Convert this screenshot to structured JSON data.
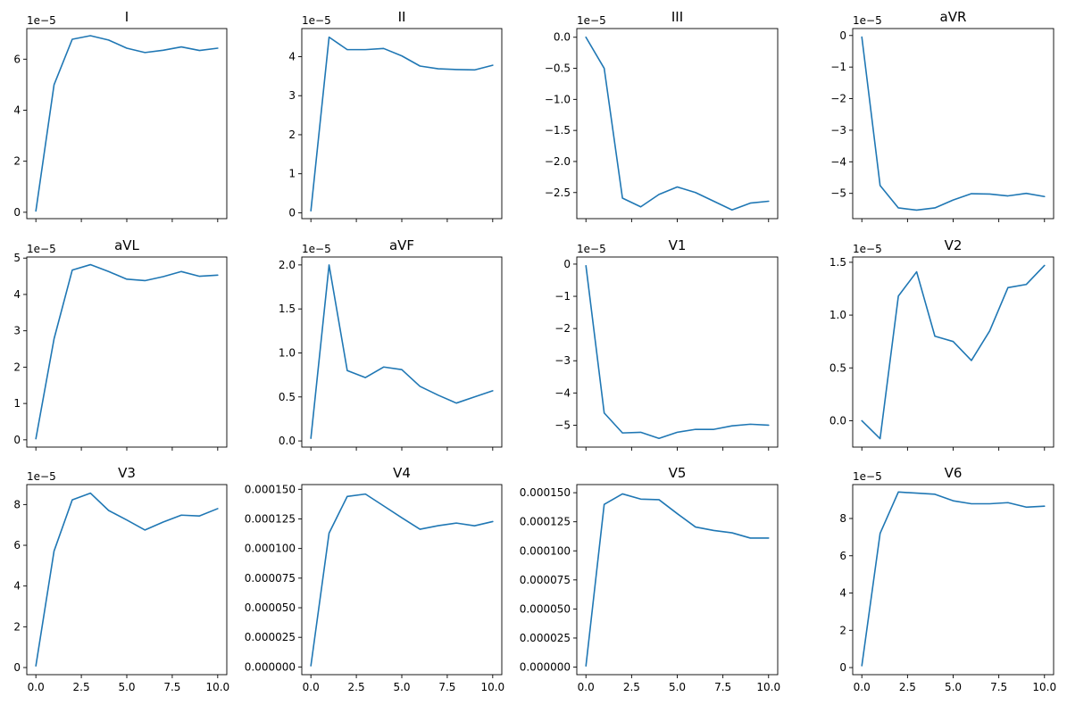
{
  "line_color": "#1f77b4",
  "chart_data": [
    {
      "type": "line",
      "title": "I",
      "x": [
        0,
        1,
        2,
        3,
        4,
        5,
        6,
        7,
        8,
        9,
        10
      ],
      "values": [
        0.05,
        5.0,
        6.78,
        6.92,
        6.75,
        6.43,
        6.26,
        6.35,
        6.48,
        6.34,
        6.43
      ],
      "exponent": "1e−5",
      "ylim": [
        -0.25,
        7.2
      ],
      "yticks": [
        0,
        2,
        4,
        6
      ],
      "ytick_labels": [
        "0",
        "2",
        "4",
        "6"
      ],
      "xlim": [
        -0.5,
        10.5
      ],
      "xticks": [
        0,
        2.5,
        5,
        7.5,
        10
      ],
      "xtick_labels": []
    },
    {
      "type": "line",
      "title": "II",
      "x": [
        0,
        1,
        2,
        3,
        4,
        5,
        6,
        7,
        8,
        9,
        10
      ],
      "values": [
        0.05,
        4.5,
        4.18,
        4.18,
        4.21,
        4.02,
        3.76,
        3.69,
        3.67,
        3.66,
        3.78
      ],
      "exponent": "1e−5",
      "ylim": [
        -0.15,
        4.72
      ],
      "yticks": [
        0,
        1,
        2,
        3,
        4
      ],
      "ytick_labels": [
        "0",
        "1",
        "2",
        "3",
        "4"
      ],
      "xlim": [
        -0.5,
        10.5
      ],
      "xticks": [
        0,
        2.5,
        5,
        7.5,
        10
      ],
      "xtick_labels": []
    },
    {
      "type": "line",
      "title": "III",
      "x": [
        0,
        1,
        2,
        3,
        4,
        5,
        6,
        7,
        8,
        9,
        10
      ],
      "values": [
        0.0,
        -0.5,
        -2.59,
        -2.73,
        -2.53,
        -2.41,
        -2.5,
        -2.64,
        -2.78,
        -2.67,
        -2.64
      ],
      "exponent": "1e−5",
      "ylim": [
        -2.92,
        0.14
      ],
      "yticks": [
        0,
        -0.5,
        -1.0,
        -1.5,
        -2.0,
        -2.5
      ],
      "ytick_labels": [
        "0.0",
        "−0.5",
        "−1.0",
        "−1.5",
        "−2.0",
        "−2.5"
      ],
      "xlim": [
        -0.5,
        10.5
      ],
      "xticks": [
        0,
        2.5,
        5,
        7.5,
        10
      ],
      "xtick_labels": []
    },
    {
      "type": "line",
      "title": "aVR",
      "x": [
        0,
        1,
        2,
        3,
        4,
        5,
        6,
        7,
        8,
        9,
        10
      ],
      "values": [
        -0.05,
        -4.75,
        -5.46,
        -5.53,
        -5.46,
        -5.21,
        -5.01,
        -5.02,
        -5.08,
        -5.0,
        -5.1
      ],
      "exponent": "1e−5",
      "ylim": [
        -5.8,
        0.22
      ],
      "yticks": [
        0,
        -1,
        -2,
        -3,
        -4,
        -5
      ],
      "ytick_labels": [
        "0",
        "−1",
        "−2",
        "−3",
        "−4",
        "−5"
      ],
      "xlim": [
        -0.5,
        10.5
      ],
      "xticks": [
        0,
        2.5,
        5,
        7.5,
        10
      ],
      "xtick_labels": []
    },
    {
      "type": "line",
      "title": "aVL",
      "x": [
        0,
        1,
        2,
        3,
        4,
        5,
        6,
        7,
        8,
        9,
        10
      ],
      "values": [
        0.03,
        2.78,
        4.67,
        4.82,
        4.63,
        4.42,
        4.38,
        4.49,
        4.63,
        4.5,
        4.53
      ],
      "exponent": "1e−5",
      "ylim": [
        -0.2,
        5.03
      ],
      "yticks": [
        0,
        1,
        2,
        3,
        4,
        5
      ],
      "ytick_labels": [
        "0",
        "1",
        "2",
        "3",
        "4",
        "5"
      ],
      "xlim": [
        -0.5,
        10.5
      ],
      "xticks": [
        0,
        2.5,
        5,
        7.5,
        10
      ],
      "xtick_labels": []
    },
    {
      "type": "line",
      "title": "aVF",
      "x": [
        0,
        1,
        2,
        3,
        4,
        5,
        6,
        7,
        8,
        9,
        10
      ],
      "values": [
        0.03,
        2.0,
        0.8,
        0.72,
        0.84,
        0.81,
        0.62,
        0.52,
        0.43,
        0.5,
        0.57
      ],
      "exponent": "1e−5",
      "ylim": [
        -0.07,
        2.09
      ],
      "yticks": [
        0,
        0.5,
        1.0,
        1.5,
        2.0
      ],
      "ytick_labels": [
        "0.0",
        "0.5",
        "1.0",
        "1.5",
        "2.0"
      ],
      "xlim": [
        -0.5,
        10.5
      ],
      "xticks": [
        0,
        2.5,
        5,
        7.5,
        10
      ],
      "xtick_labels": []
    },
    {
      "type": "line",
      "title": "V1",
      "x": [
        0,
        1,
        2,
        3,
        4,
        5,
        6,
        7,
        8,
        9,
        10
      ],
      "values": [
        -0.05,
        -4.62,
        -5.24,
        -5.22,
        -5.41,
        -5.22,
        -5.13,
        -5.13,
        -5.02,
        -4.97,
        -5.0
      ],
      "exponent": "1e−5",
      "ylim": [
        -5.68,
        0.22
      ],
      "yticks": [
        0,
        -1,
        -2,
        -3,
        -4,
        -5
      ],
      "ytick_labels": [
        "0",
        "−1",
        "−2",
        "−3",
        "−4",
        "−5"
      ],
      "xlim": [
        -0.5,
        10.5
      ],
      "xticks": [
        0,
        2.5,
        5,
        7.5,
        10
      ],
      "xtick_labels": []
    },
    {
      "type": "line",
      "title": "V2",
      "x": [
        0,
        1,
        2,
        3,
        4,
        5,
        6,
        7,
        8,
        9,
        10
      ],
      "values": [
        0.0,
        -0.17,
        1.18,
        1.41,
        0.8,
        0.75,
        0.57,
        0.85,
        1.26,
        1.29,
        1.47
      ],
      "exponent": "1e−5",
      "ylim": [
        -0.25,
        1.55
      ],
      "yticks": [
        0,
        0.5,
        1.0,
        1.5
      ],
      "ytick_labels": [
        "0.0",
        "0.5",
        "1.0",
        "1.5"
      ],
      "xlim": [
        -0.5,
        10.5
      ],
      "xticks": [
        0,
        2.5,
        5,
        7.5,
        10
      ],
      "xtick_labels": []
    },
    {
      "type": "line",
      "title": "V3",
      "x": [
        0,
        1,
        2,
        3,
        4,
        5,
        6,
        7,
        8,
        9,
        10
      ],
      "values": [
        0.08,
        5.72,
        8.23,
        8.56,
        7.71,
        7.24,
        6.75,
        7.14,
        7.48,
        7.44,
        7.8
      ],
      "exponent": "1e−5",
      "ylim": [
        -0.35,
        8.98
      ],
      "yticks": [
        0,
        2,
        4,
        6,
        8
      ],
      "ytick_labels": [
        "0",
        "2",
        "4",
        "6",
        "8"
      ],
      "xlim": [
        -0.5,
        10.5
      ],
      "xticks": [
        0,
        2.5,
        5,
        7.5,
        10
      ],
      "xtick_labels": [
        "0.0",
        "2.5",
        "5.0",
        "7.5",
        "10.0"
      ]
    },
    {
      "type": "line",
      "title": "V4",
      "x": [
        0,
        1,
        2,
        3,
        4,
        5,
        6,
        7,
        8,
        9,
        10
      ],
      "values": [
        1e-06,
        0.000113,
        0.000144,
        0.000146,
        0.000136,
        0.000126,
        0.0001163,
        0.0001193,
        0.0001215,
        0.0001192,
        0.0001228
      ],
      "exponent": "",
      "ylim": [
        -6.5e-06,
        0.000154
      ],
      "yticks": [
        0,
        2.5e-05,
        5e-05,
        7.5e-05,
        0.0001,
        0.000125,
        0.00015
      ],
      "ytick_labels": [
        "0.000000",
        "0.000025",
        "0.000050",
        "0.000075",
        "0.000100",
        "0.000125",
        "0.000150"
      ],
      "xlim": [
        -0.5,
        10.5
      ],
      "xticks": [
        0,
        2.5,
        5,
        7.5,
        10
      ],
      "xtick_labels": [
        "0.0",
        "2.5",
        "5.0",
        "7.5",
        "10.0"
      ]
    },
    {
      "type": "line",
      "title": "V5",
      "x": [
        0,
        1,
        2,
        3,
        4,
        5,
        6,
        7,
        8,
        9,
        10
      ],
      "values": [
        1e-06,
        0.00014,
        0.000149,
        0.0001445,
        0.000144,
        0.000132,
        0.0001205,
        0.0001175,
        0.0001155,
        0.000111,
        0.000111
      ],
      "exponent": "",
      "ylim": [
        -6.5e-06,
        0.000157
      ],
      "yticks": [
        0,
        2.5e-05,
        5e-05,
        7.5e-05,
        0.0001,
        0.000125,
        0.00015
      ],
      "ytick_labels": [
        "0.000000",
        "0.000025",
        "0.000050",
        "0.000075",
        "0.000100",
        "0.000125",
        "0.000150"
      ],
      "xlim": [
        -0.5,
        10.5
      ],
      "xticks": [
        0,
        2.5,
        5,
        7.5,
        10
      ],
      "xtick_labels": [
        "0.0",
        "2.5",
        "5.0",
        "7.5",
        "10.0"
      ]
    },
    {
      "type": "line",
      "title": "V6",
      "x": [
        0,
        1,
        2,
        3,
        4,
        5,
        6,
        7,
        8,
        9,
        10
      ],
      "values": [
        0.1,
        7.2,
        9.42,
        9.36,
        9.3,
        8.95,
        8.79,
        8.79,
        8.85,
        8.61,
        8.66
      ],
      "exponent": "1e−5",
      "ylim": [
        -0.38,
        9.82
      ],
      "yticks": [
        0,
        2,
        4,
        6,
        8
      ],
      "ytick_labels": [
        "0",
        "2",
        "4",
        "6",
        "8"
      ],
      "xlim": [
        -0.5,
        10.5
      ],
      "xticks": [
        0,
        2.5,
        5,
        7.5,
        10
      ],
      "xtick_labels": [
        "0.0",
        "2.5",
        "5.0",
        "7.5",
        "10.0"
      ]
    }
  ]
}
